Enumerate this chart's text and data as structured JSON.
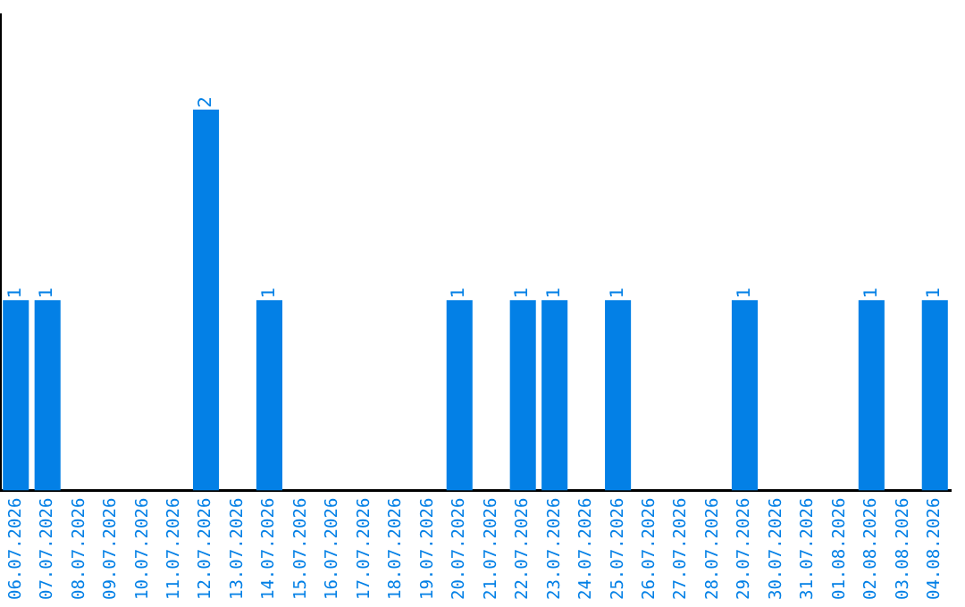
{
  "chart_data": {
    "type": "bar",
    "categories": [
      "06.07.2026",
      "07.07.2026",
      "08.07.2026",
      "09.07.2026",
      "10.07.2026",
      "11.07.2026",
      "12.07.2026",
      "13.07.2026",
      "14.07.2026",
      "15.07.2026",
      "16.07.2026",
      "17.07.2026",
      "18.07.2026",
      "19.07.2026",
      "20.07.2026",
      "21.07.2026",
      "22.07.2026",
      "23.07.2026",
      "24.07.2026",
      "25.07.2026",
      "26.07.2026",
      "27.07.2026",
      "28.07.2026",
      "29.07.2026",
      "30.07.2026",
      "31.07.2026",
      "01.08.2026",
      "02.08.2026",
      "03.08.2026",
      "04.08.2026"
    ],
    "values": [
      1,
      1,
      0,
      0,
      0,
      0,
      2,
      0,
      1,
      0,
      0,
      0,
      0,
      0,
      1,
      0,
      1,
      1,
      0,
      1,
      0,
      0,
      0,
      1,
      0,
      0,
      0,
      1,
      0,
      1
    ],
    "color": "#0380e6",
    "value_labels": [
      "1",
      "1",
      null,
      null,
      null,
      null,
      "2",
      null,
      "1",
      null,
      null,
      null,
      null,
      null,
      "1",
      null,
      "1",
      "1",
      null,
      "1",
      null,
      null,
      null,
      "1",
      null,
      null,
      null,
      "1",
      null,
      "1"
    ],
    "grid": false,
    "legend": false,
    "tick_labels": "x"
  }
}
